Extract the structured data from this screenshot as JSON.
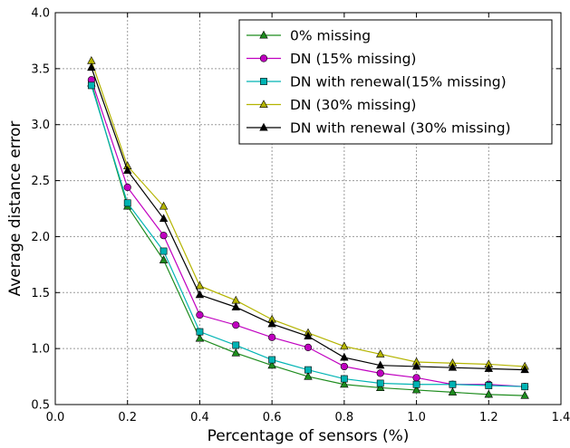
{
  "chart_data": {
    "type": "line",
    "title": "",
    "xlabel": "Percentage of sensors (%)",
    "ylabel": "Average distance error",
    "xlim": [
      0.0,
      1.4
    ],
    "ylim": [
      0.5,
      4.0
    ],
    "xticks": [
      "0.0",
      "0.2",
      "0.4",
      "0.6",
      "0.8",
      "1.0",
      "1.2",
      "1.4"
    ],
    "yticks": [
      "0.5",
      "1.0",
      "1.5",
      "2.0",
      "2.5",
      "3.0",
      "3.5",
      "4.0"
    ],
    "grid": true,
    "legend_position": "top-right",
    "x": [
      0.1,
      0.2,
      0.3,
      0.4,
      0.5,
      0.6,
      0.7,
      0.8,
      0.9,
      1.0,
      1.1,
      1.2,
      1.3
    ],
    "series": [
      {
        "name": "0% missing",
        "color": "#1e8c1e",
        "marker": "triangle",
        "values": [
          3.37,
          2.27,
          1.79,
          1.09,
          0.96,
          0.85,
          0.75,
          0.68,
          0.65,
          0.63,
          0.61,
          0.59,
          0.58
        ]
      },
      {
        "name": "DN (15% missing)",
        "color": "#c000c0",
        "marker": "circle",
        "values": [
          3.4,
          2.44,
          2.01,
          1.3,
          1.21,
          1.1,
          1.01,
          0.84,
          0.78,
          0.74,
          0.68,
          0.68,
          0.66
        ]
      },
      {
        "name": "DN with renewal(15% missing)",
        "color": "#00b4b4",
        "marker": "square",
        "values": [
          3.35,
          2.3,
          1.87,
          1.15,
          1.03,
          0.9,
          0.81,
          0.73,
          0.69,
          0.68,
          0.68,
          0.67,
          0.66
        ]
      },
      {
        "name": "DN (30% missing)",
        "color": "#b4b400",
        "marker": "triangle",
        "values": [
          3.57,
          2.63,
          2.27,
          1.56,
          1.43,
          1.26,
          1.14,
          1.02,
          0.95,
          0.88,
          0.87,
          0.86,
          0.84
        ]
      },
      {
        "name": "DN with renewal (30% missing)",
        "color": "#000000",
        "marker": "triangle",
        "values": [
          3.51,
          2.59,
          2.16,
          1.48,
          1.37,
          1.22,
          1.11,
          0.92,
          0.85,
          0.84,
          0.83,
          0.82,
          0.81
        ]
      }
    ]
  }
}
